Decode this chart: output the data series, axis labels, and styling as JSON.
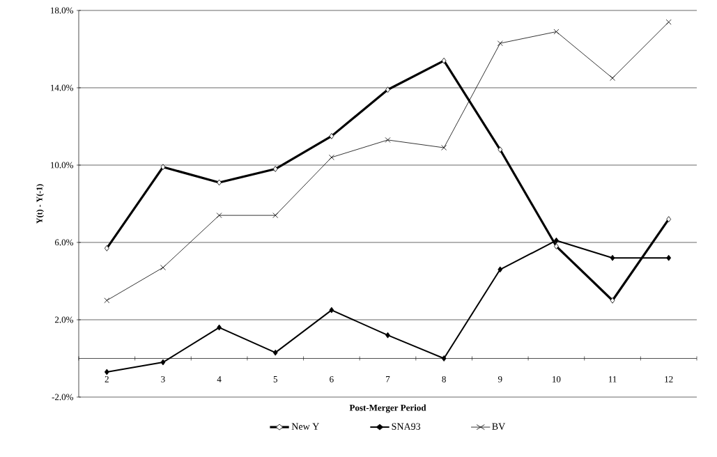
{
  "chart_data": {
    "type": "line",
    "xlabel": "Post-Merger Period",
    "ylabel": "Y(t) - Y(-1)",
    "categories": [
      "2",
      "3",
      "4",
      "5",
      "6",
      "7",
      "8",
      "9",
      "10",
      "11",
      "12"
    ],
    "series": [
      {
        "name": "New Y",
        "color": "#000000",
        "marker": "diamond",
        "values": [
          5.7,
          9.9,
          9.1,
          9.8,
          11.5,
          13.9,
          15.4,
          10.8,
          5.8,
          3.0,
          7.2
        ]
      },
      {
        "name": "SNA93",
        "color": "#000000",
        "marker": "diamond",
        "values": [
          -0.7,
          -0.2,
          1.6,
          0.3,
          2.5,
          1.2,
          0.0,
          4.6,
          6.1,
          5.2,
          5.2
        ]
      },
      {
        "name": "BV",
        "color": "#000000",
        "marker": "cross",
        "values": [
          3.0,
          4.7,
          7.4,
          7.4,
          10.4,
          11.3,
          10.9,
          16.3,
          16.9,
          14.5,
          17.4
        ]
      }
    ],
    "ylim": [
      -2,
      18
    ],
    "yticks": [
      {
        "value": -2,
        "label": "-2.0%"
      },
      {
        "value": 2,
        "label": "2.0%"
      },
      {
        "value": 6,
        "label": "6.0%"
      },
      {
        "value": 10,
        "label": "10.0%"
      },
      {
        "value": 14,
        "label": "14.0%"
      },
      {
        "value": 18,
        "label": "18.0%"
      }
    ],
    "grid": "y",
    "legend": "bottom",
    "line_style": "solid"
  }
}
